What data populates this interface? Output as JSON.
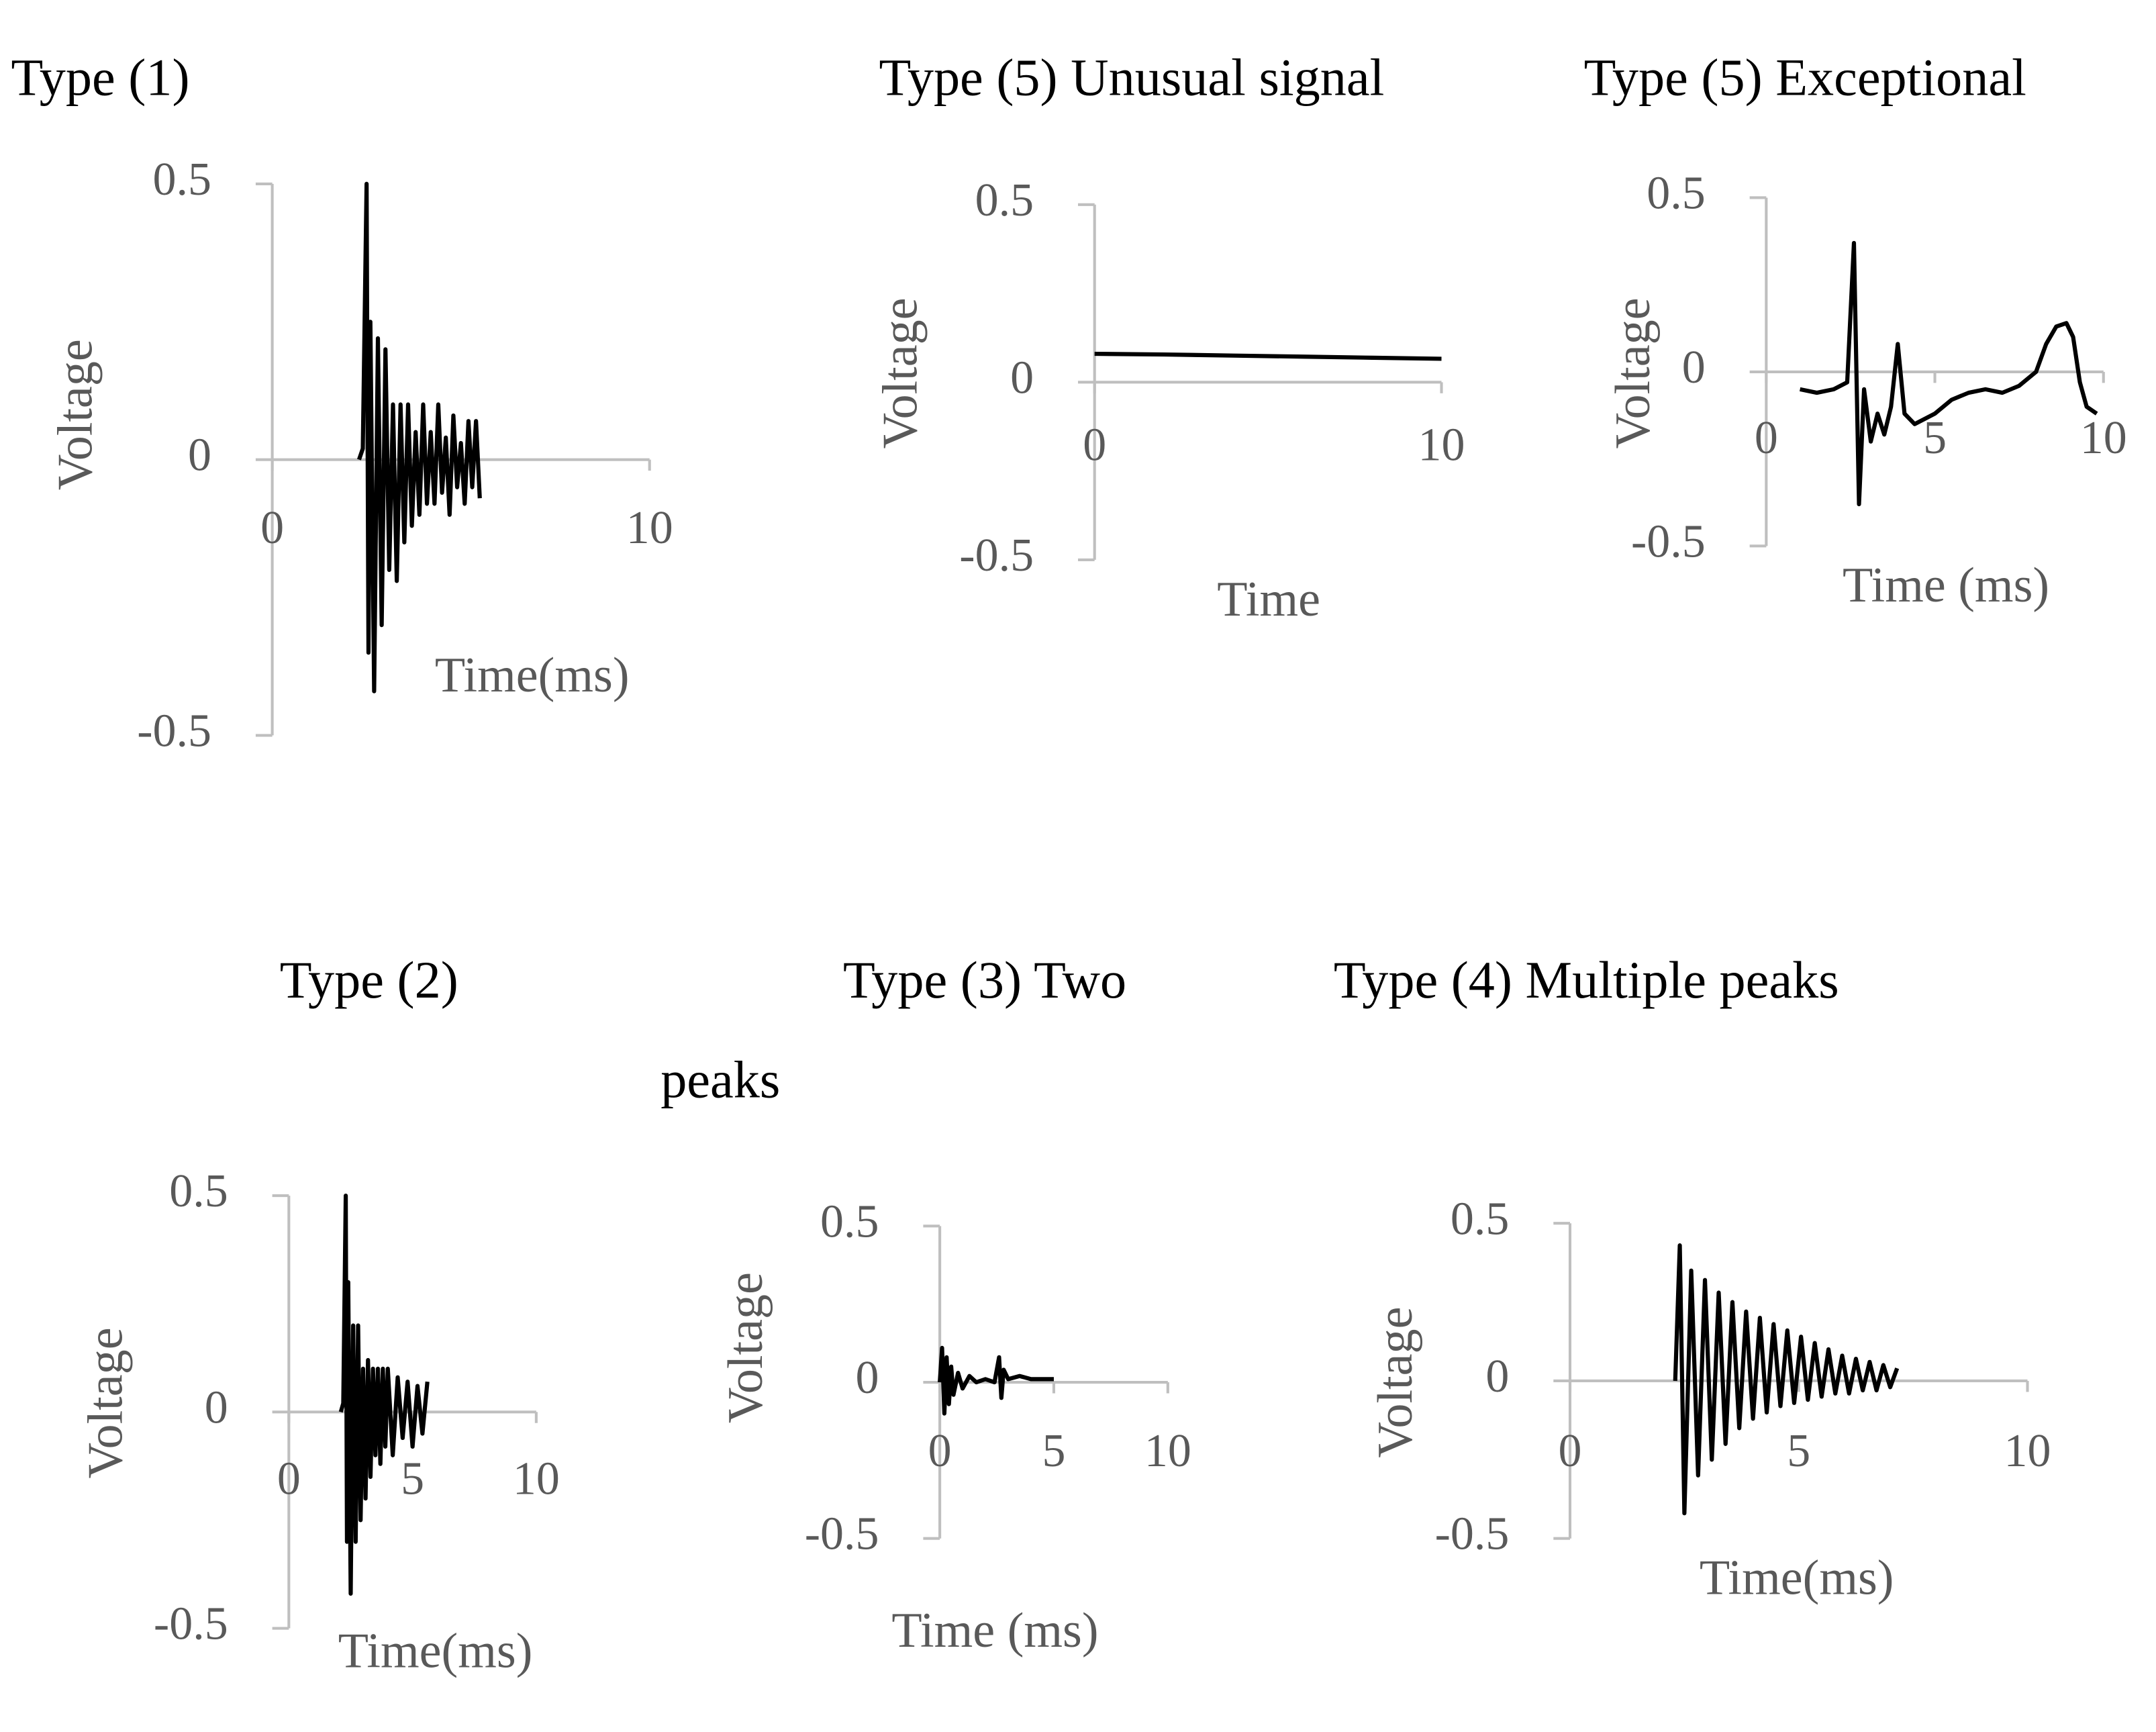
{
  "chart_data": [
    {
      "type": "line",
      "title": "Type (1)",
      "xlabel": "Time(ms)",
      "ylabel": "Voltage",
      "color": "#000000",
      "xlim": [
        0,
        10
      ],
      "xticks": [
        0,
        10
      ],
      "ylim": [
        -0.5,
        0.5
      ],
      "yticks": [
        0.5,
        0,
        -0.5
      ],
      "x": [
        2.3,
        2.4,
        2.5,
        2.55,
        2.6,
        2.7,
        2.8,
        2.9,
        3.0,
        3.1,
        3.2,
        3.3,
        3.4,
        3.5,
        3.6,
        3.7,
        3.8,
        3.9,
        4.0,
        4.1,
        4.2,
        4.3,
        4.4,
        4.5,
        4.6,
        4.7,
        4.8,
        4.9,
        5.0,
        5.1,
        5.2,
        5.3,
        5.4,
        5.5
      ],
      "values": [
        0,
        0.02,
        0.5,
        -0.35,
        0.25,
        -0.42,
        0.22,
        -0.3,
        0.2,
        -0.2,
        0.1,
        -0.22,
        0.1,
        -0.15,
        0.1,
        -0.12,
        0.05,
        -0.1,
        0.1,
        -0.08,
        0.05,
        -0.08,
        0.1,
        -0.06,
        0.04,
        -0.1,
        0.08,
        -0.05,
        0.03,
        -0.08,
        0.07,
        -0.05,
        0.07,
        -0.07
      ]
    },
    {
      "type": "line",
      "title": "Type (5) Unusual signal",
      "xlabel": "Time",
      "ylabel": "Voltage",
      "color": "#000000",
      "xlim": [
        0,
        10
      ],
      "xticks": [
        0,
        10
      ],
      "ylim": [
        -0.5,
        0.5
      ],
      "yticks": [
        0.5,
        0,
        -0.5
      ],
      "x": [
        0,
        2,
        4,
        6,
        8,
        10
      ],
      "values": [
        0.08,
        0.078,
        0.075,
        0.072,
        0.069,
        0.066
      ]
    },
    {
      "type": "line",
      "title": "Type (5) Exceptional",
      "xlabel": "Time (ms)",
      "ylabel": "Voltage",
      "color": "#000000",
      "xlim": [
        0,
        10
      ],
      "xticks": [
        0,
        5,
        10
      ],
      "ylim": [
        -0.5,
        0.5
      ],
      "yticks": [
        0.5,
        0,
        -0.5
      ],
      "x": [
        1,
        1.5,
        2,
        2.4,
        2.6,
        2.75,
        2.9,
        3.1,
        3.3,
        3.5,
        3.7,
        3.9,
        4.1,
        4.4,
        5,
        5.5,
        6,
        6.5,
        7,
        7.5,
        8,
        8.3,
        8.6,
        8.9,
        9.1,
        9.3,
        9.5,
        9.8
      ],
      "values": [
        -0.05,
        -0.06,
        -0.05,
        -0.03,
        0.37,
        -0.38,
        -0.05,
        -0.2,
        -0.12,
        -0.18,
        -0.1,
        0.08,
        -0.12,
        -0.15,
        -0.12,
        -0.08,
        -0.06,
        -0.05,
        -0.06,
        -0.04,
        0,
        0.08,
        0.13,
        0.14,
        0.1,
        -0.03,
        -0.1,
        -0.12
      ]
    },
    {
      "type": "line",
      "title": "Type (2)",
      "xlabel": "Time(ms)",
      "ylabel": "Voltage",
      "color": "#000000",
      "xlim": [
        0,
        10
      ],
      "xticks": [
        0,
        5,
        10
      ],
      "ylim": [
        -0.5,
        0.5
      ],
      "yticks": [
        0.5,
        0,
        -0.5
      ],
      "x": [
        2.1,
        2.2,
        2.3,
        2.35,
        2.4,
        2.5,
        2.6,
        2.7,
        2.8,
        2.9,
        3.0,
        3.1,
        3.2,
        3.3,
        3.4,
        3.5,
        3.6,
        3.7,
        3.8,
        3.9,
        4.0,
        4.2,
        4.4,
        4.6,
        4.8,
        5.0,
        5.2,
        5.4,
        5.6
      ],
      "values": [
        0,
        0.02,
        0.5,
        -0.3,
        0.3,
        -0.42,
        0.2,
        -0.3,
        0.2,
        -0.25,
        0.1,
        -0.2,
        0.12,
        -0.15,
        0.1,
        -0.1,
        0.1,
        -0.12,
        0.1,
        -0.08,
        0.1,
        -0.1,
        0.08,
        -0.06,
        0.07,
        -0.08,
        0.06,
        -0.05,
        0.07
      ]
    },
    {
      "type": "line",
      "title": [
        "Type (3) Two",
        "peaks"
      ],
      "xlabel": "Time (ms)",
      "ylabel": "Voltage",
      "color": "#000000",
      "xlim": [
        0,
        10
      ],
      "xticks": [
        0,
        5,
        10
      ],
      "ylim": [
        -0.5,
        0.5
      ],
      "yticks": [
        0.5,
        0,
        -0.5
      ],
      "x": [
        0,
        0.1,
        0.2,
        0.3,
        0.4,
        0.5,
        0.6,
        0.8,
        1.0,
        1.3,
        1.6,
        2.0,
        2.4,
        2.6,
        2.7,
        2.8,
        3.0,
        3.5,
        4,
        4.5,
        5
      ],
      "values": [
        0,
        0.11,
        -0.1,
        0.08,
        -0.07,
        0.05,
        -0.04,
        0.03,
        -0.02,
        0.02,
        0,
        0.01,
        0,
        0.08,
        -0.05,
        0.04,
        0.01,
        0.02,
        0.01,
        0.01,
        0.01
      ]
    },
    {
      "type": "line",
      "title": "Type (4) Multiple peaks",
      "xlabel": "Time(ms)",
      "ylabel": "Voltage",
      "color": "#000000",
      "xlim": [
        0,
        10
      ],
      "xticks": [
        0,
        5,
        10
      ],
      "ylim": [
        -0.5,
        0.5
      ],
      "yticks": [
        0.5,
        0,
        -0.5
      ],
      "x": [
        2.3,
        2.4,
        2.5,
        2.65,
        2.8,
        2.95,
        3.1,
        3.25,
        3.4,
        3.55,
        3.7,
        3.85,
        4.0,
        4.15,
        4.3,
        4.45,
        4.6,
        4.75,
        4.9,
        5.05,
        5.2,
        5.35,
        5.5,
        5.65,
        5.8,
        5.95,
        6.1,
        6.25,
        6.4,
        6.55,
        6.7,
        6.85,
        7.0,
        7.15
      ],
      "values": [
        0,
        0.43,
        -0.42,
        0.35,
        -0.3,
        0.32,
        -0.25,
        0.28,
        -0.2,
        0.25,
        -0.15,
        0.22,
        -0.12,
        0.2,
        -0.1,
        0.18,
        -0.08,
        0.16,
        -0.07,
        0.14,
        -0.06,
        0.12,
        -0.05,
        0.1,
        -0.04,
        0.08,
        -0.04,
        0.07,
        -0.03,
        0.06,
        -0.03,
        0.05,
        -0.02,
        0.04
      ]
    }
  ]
}
